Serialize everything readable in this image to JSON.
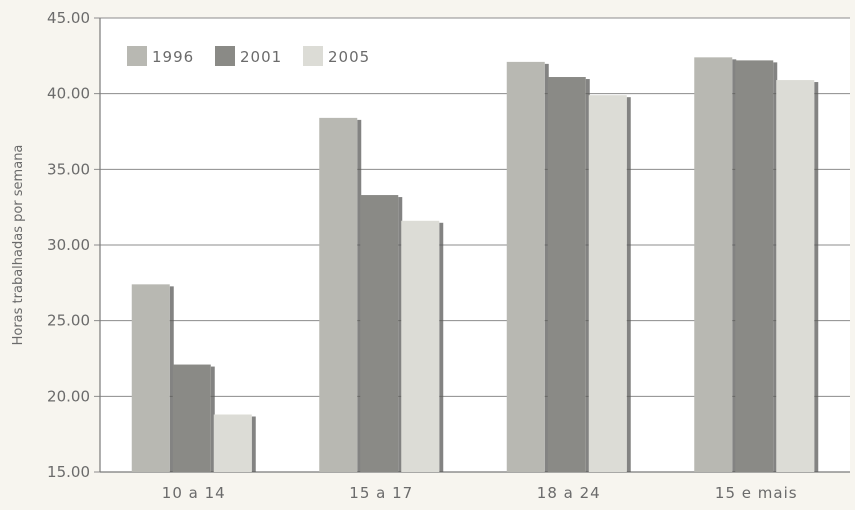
{
  "chart_data": {
    "type": "bar",
    "title": "",
    "xlabel": "",
    "ylabel": "Horas trabalhadas por semana",
    "ylim": [
      15,
      45
    ],
    "yticks": [
      "15.00",
      "20.00",
      "25.00",
      "30.00",
      "35.00",
      "40.00",
      "45.00"
    ],
    "categories": [
      "10 a 14",
      "15 a 17",
      "18 a 24",
      "15 e mais"
    ],
    "series": [
      {
        "name": "1996",
        "values": [
          27.4,
          38.4,
          42.1,
          42.4
        ],
        "color": "#b8b8b2"
      },
      {
        "name": "2001",
        "values": [
          22.1,
          33.3,
          41.1,
          42.2
        ],
        "color": "#8a8a86"
      },
      {
        "name": "2005",
        "values": [
          18.8,
          31.6,
          39.9,
          40.9
        ],
        "color": "#dcdcd6"
      }
    ],
    "grid": true,
    "legend": "top-left"
  }
}
